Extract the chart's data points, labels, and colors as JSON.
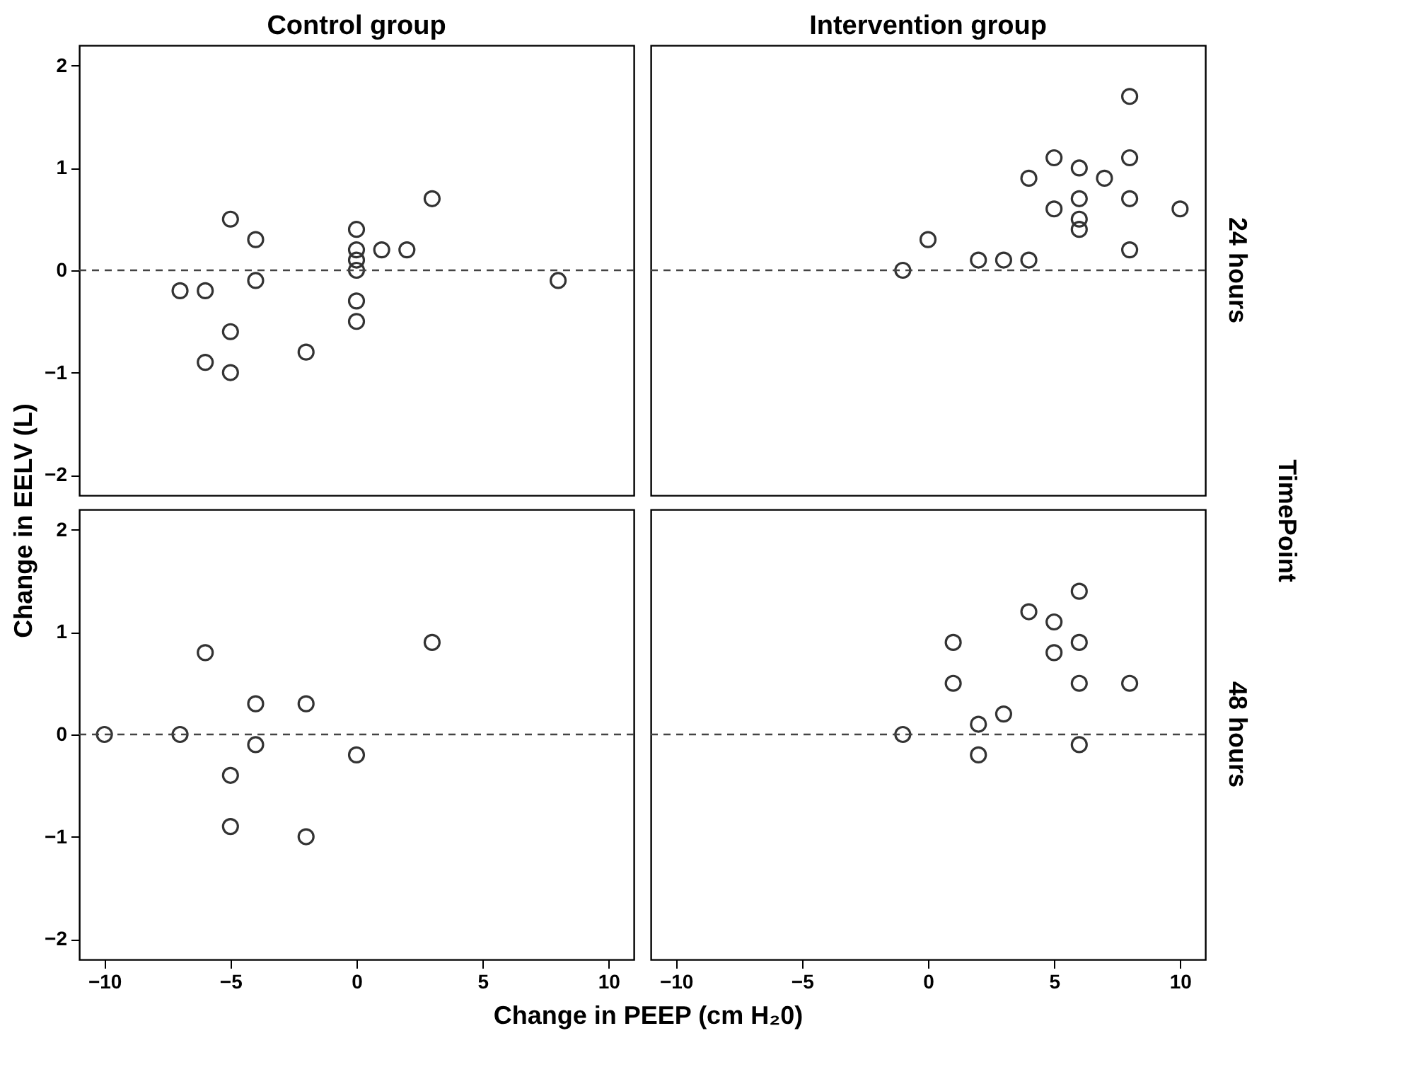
{
  "chart_data": [
    {
      "type": "scatter",
      "title": "Control group",
      "ylabel": "Change in EELV (L)",
      "xlim": [
        -11,
        11
      ],
      "ylim": [
        -2.2,
        2.2
      ],
      "xticks": [
        -10,
        -5,
        0,
        5,
        10
      ],
      "yticks": [
        -2,
        -1,
        0,
        1,
        2
      ],
      "tick_labels": "y",
      "grid": false,
      "marker": "circle",
      "ref_lines": [
        {
          "axis": "y",
          "value": 0,
          "line_style": "dashed"
        }
      ],
      "x": [
        -7,
        -6,
        -6,
        -5,
        -5,
        -5,
        -4,
        -4,
        -2,
        0,
        0,
        0,
        0,
        0,
        0,
        1,
        2,
        3,
        8
      ],
      "series": [
        {
          "color": "#333333",
          "values": [
            -0.2,
            -0.2,
            -0.9,
            0.5,
            -0.6,
            -1.0,
            0.3,
            -0.1,
            -0.8,
            0.4,
            0.2,
            0.1,
            0,
            -0.3,
            -0.5,
            0.2,
            0.2,
            0.7,
            -0.1
          ]
        }
      ]
    },
    {
      "type": "scatter",
      "title": "Intervention group",
      "y2label": "24 hours",
      "annotations": [
        "TimePoint"
      ],
      "xlim": [
        -11,
        11
      ],
      "ylim": [
        -2.2,
        2.2
      ],
      "xticks": [
        -10,
        -5,
        0,
        5,
        10
      ],
      "yticks": [
        -2,
        -1,
        0,
        1,
        2
      ],
      "tick_labels": false,
      "grid": false,
      "marker": "circle",
      "ref_lines": [
        {
          "axis": "y",
          "value": 0,
          "line_style": "dashed"
        }
      ],
      "x": [
        -1,
        0,
        2,
        3,
        4,
        4,
        5,
        5,
        6,
        6,
        6,
        6,
        7,
        8,
        8,
        8,
        8,
        10
      ],
      "series": [
        {
          "color": "#333333",
          "values": [
            0,
            0.3,
            0.1,
            0.1,
            0.1,
            0.9,
            1.1,
            0.6,
            1.0,
            0.7,
            0.5,
            0.4,
            0.9,
            1.7,
            1.1,
            0.7,
            0.2,
            0.6
          ]
        }
      ]
    },
    {
      "type": "scatter",
      "xlabel": "Change in PEEP (cm H₂0)",
      "xlim": [
        -11,
        11
      ],
      "ylim": [
        -2.2,
        2.2
      ],
      "xticks": [
        -10,
        -5,
        0,
        5,
        10
      ],
      "yticks": [
        -2,
        -1,
        0,
        1,
        2
      ],
      "grid": false,
      "marker": "circle",
      "ref_lines": [
        {
          "axis": "y",
          "value": 0,
          "line_style": "dashed"
        }
      ],
      "x": [
        -10,
        -7,
        -6,
        -5,
        -5,
        -4,
        -4,
        -2,
        -2,
        0,
        3
      ],
      "series": [
        {
          "color": "#333333",
          "values": [
            0,
            0,
            0.8,
            -0.4,
            -0.9,
            0.3,
            -0.1,
            0.3,
            -1.0,
            -0.2,
            0.9
          ]
        }
      ]
    },
    {
      "type": "scatter",
      "y2label": "48 hours",
      "xlim": [
        -11,
        11
      ],
      "ylim": [
        -2.2,
        2.2
      ],
      "xticks": [
        -10,
        -5,
        0,
        5,
        10
      ],
      "yticks": [
        -2,
        -1,
        0,
        1,
        2
      ],
      "tick_labels": "x",
      "grid": false,
      "marker": "circle",
      "ref_lines": [
        {
          "axis": "y",
          "value": 0,
          "line_style": "dashed"
        }
      ],
      "x": [
        -1,
        1,
        1,
        2,
        2,
        3,
        4,
        5,
        5,
        6,
        6,
        6,
        6,
        8
      ],
      "series": [
        {
          "color": "#333333",
          "values": [
            0,
            0.9,
            0.5,
            0.1,
            -0.2,
            0.2,
            1.2,
            1.1,
            0.8,
            1.4,
            0.9,
            0.5,
            -0.1,
            0.5
          ]
        }
      ]
    }
  ]
}
